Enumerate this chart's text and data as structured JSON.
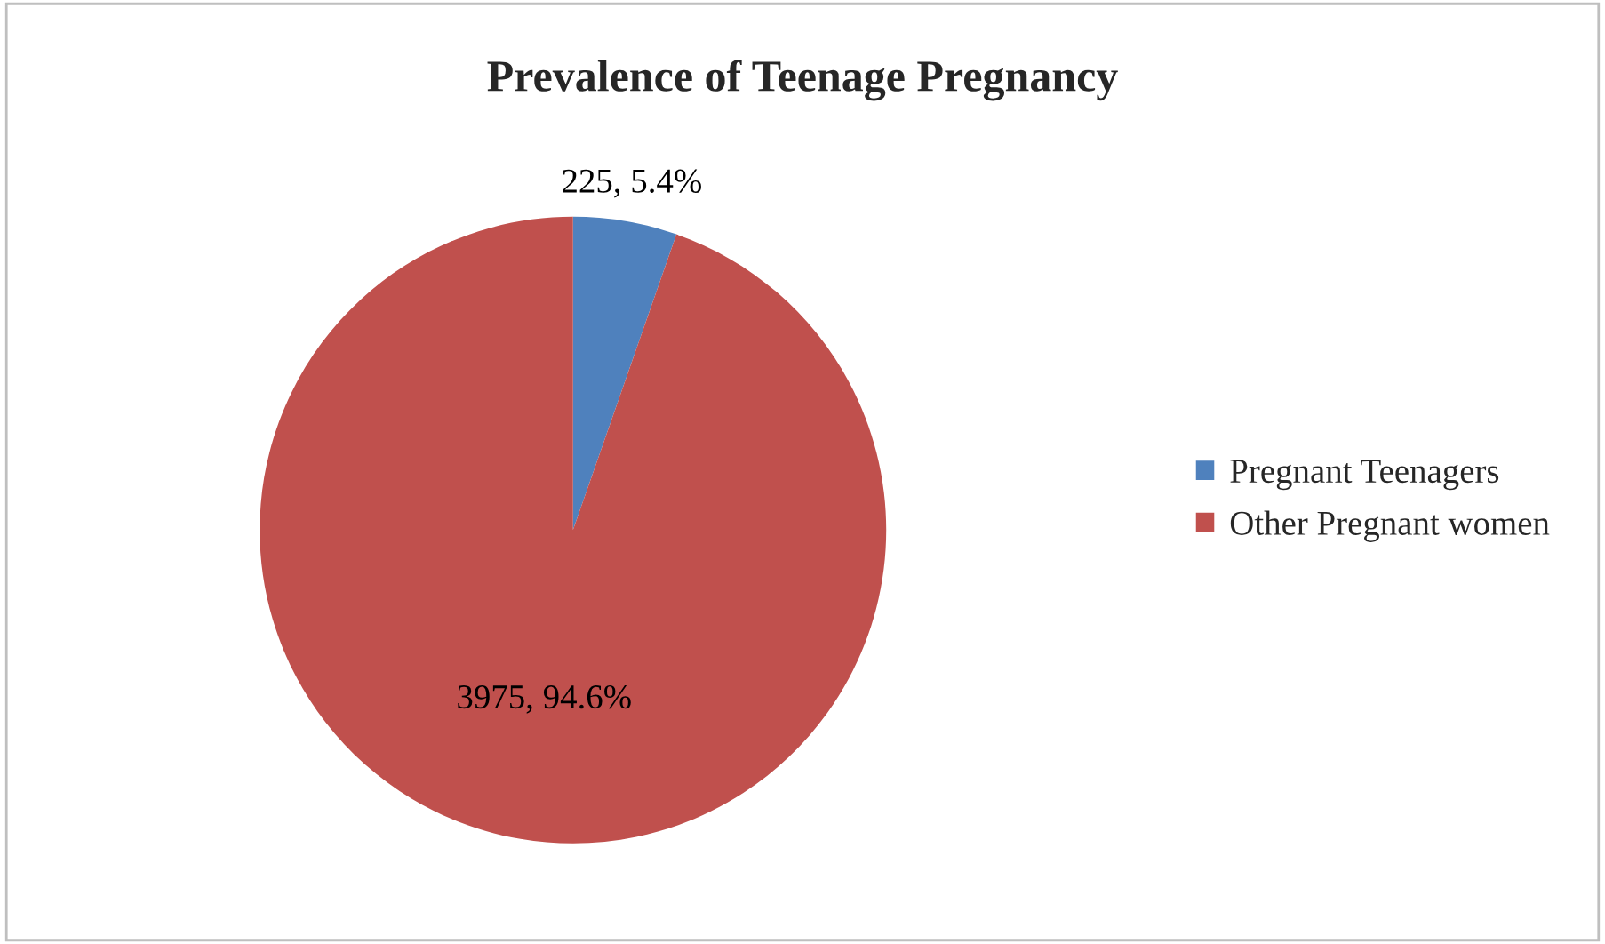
{
  "chart_data": {
    "type": "pie",
    "title": "Prevalence of Teenage Pregnancy",
    "categories": [
      "Pregnant Teenagers",
      "Other Pregnant women"
    ],
    "values": [
      225,
      3975
    ],
    "colors": [
      "#4f81bd",
      "#c0504d"
    ],
    "value_labels": [
      "225, 5.4%",
      "3975, 94.6%"
    ],
    "legend": "right"
  }
}
